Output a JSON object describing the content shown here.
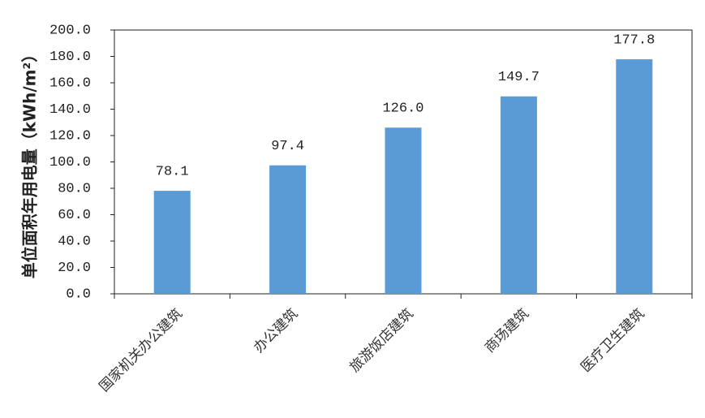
{
  "chart_data": {
    "type": "bar",
    "y_axis_label": "单位面积年用电量（kWh/m²）",
    "categories": [
      "国家机关办公建筑",
      "办公建筑",
      "旅游饭店建筑",
      "商场建筑",
      "医疗卫生建筑"
    ],
    "values": [
      78.1,
      97.4,
      126.0,
      149.7,
      177.8
    ],
    "value_labels": [
      "78.1",
      "97.4",
      "126.0",
      "149.7",
      "177.8"
    ],
    "color": "#5b9bd5",
    "ylim": [
      0,
      200
    ],
    "yticks": [
      {
        "value": 0,
        "label": "0.0"
      },
      {
        "value": 20,
        "label": "20.0"
      },
      {
        "value": 40,
        "label": "40.0"
      },
      {
        "value": 60,
        "label": "60.0"
      },
      {
        "value": 80,
        "label": "80.0"
      },
      {
        "value": 100,
        "label": "100.0"
      },
      {
        "value": 120,
        "label": "120.0"
      },
      {
        "value": 140,
        "label": "140.0"
      },
      {
        "value": 160,
        "label": "160.0"
      },
      {
        "value": 180,
        "label": "180.0"
      },
      {
        "value": 200,
        "label": "200.0"
      }
    ],
    "grid": false
  }
}
